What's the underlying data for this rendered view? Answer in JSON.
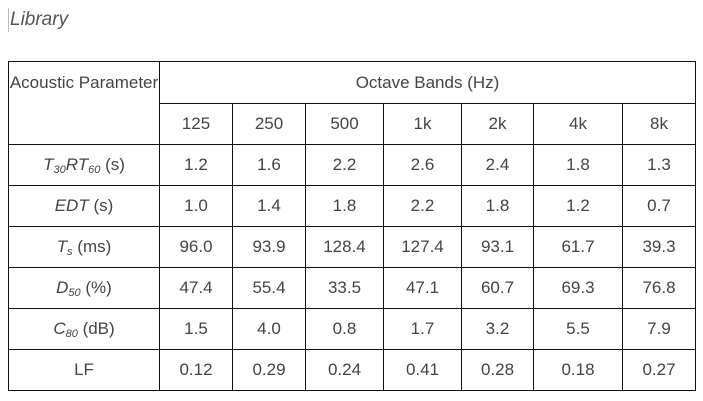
{
  "title": "Library",
  "header": {
    "parameter": "Acoustic Parameter",
    "group": "Octave Bands (Hz)",
    "bands": [
      "125",
      "250",
      "500",
      "1k",
      "2k",
      "4k",
      "8k"
    ]
  },
  "rows": [
    {
      "parts": [
        {
          "t": "T",
          "s": "30"
        },
        {
          "t": "RT",
          "s": "60"
        }
      ],
      "unit": " (s)",
      "values": [
        "1.2",
        "1.6",
        "2.2",
        "2.6",
        "2.4",
        "1.8",
        "1.3"
      ]
    },
    {
      "parts": [
        {
          "t": "EDT",
          "s": ""
        }
      ],
      "unit": " (s)",
      "values": [
        "1.0",
        "1.4",
        "1.8",
        "2.2",
        "1.8",
        "1.2",
        "0.7"
      ]
    },
    {
      "parts": [
        {
          "t": "T",
          "s": "s"
        }
      ],
      "unit": " (ms)",
      "values": [
        "96.0",
        "93.9",
        "128.4",
        "127.4",
        "93.1",
        "61.7",
        "39.3"
      ]
    },
    {
      "parts": [
        {
          "t": "D",
          "s": "50"
        }
      ],
      "unit": " (%)",
      "values": [
        "47.4",
        "55.4",
        "33.5",
        "47.1",
        "60.7",
        "69.3",
        "76.8"
      ]
    },
    {
      "parts": [
        {
          "t": "C",
          "s": "80"
        }
      ],
      "unit": " (dB)",
      "values": [
        "1.5",
        "4.0",
        "0.8",
        "1.7",
        "3.2",
        "5.5",
        "7.9"
      ]
    },
    {
      "parts": [],
      "unit": "LF",
      "values": [
        "0.12",
        "0.29",
        "0.24",
        "0.41",
        "0.28",
        "0.18",
        "0.27"
      ]
    }
  ]
}
